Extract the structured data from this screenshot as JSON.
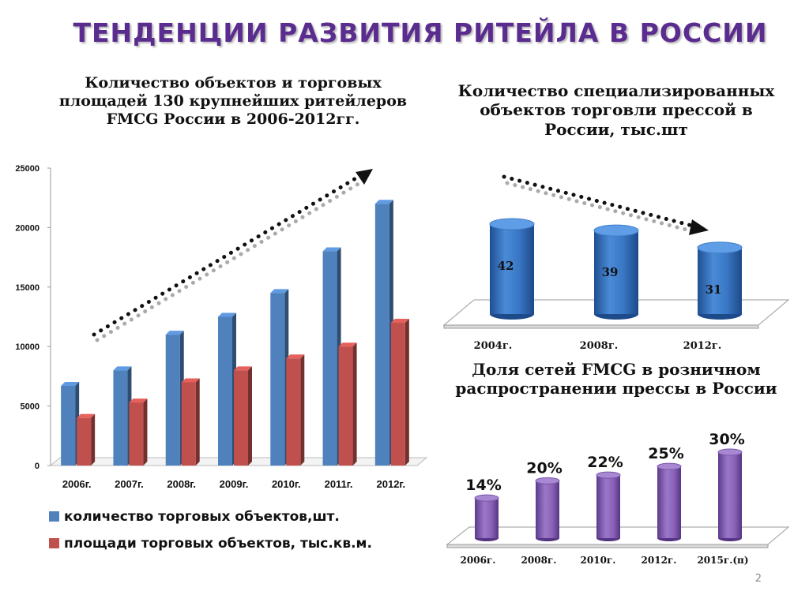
{
  "page": {
    "title": "ТЕНДЕНЦИИ РАЗВИТИЯ РИТЕЙЛА В РОССИИ",
    "page_number": "2"
  },
  "colors": {
    "title": "#5b2c8f",
    "blue_series": "#4f81bd",
    "red_series": "#c0504d",
    "cylinder_blue": "#3a78c6",
    "purple_bars": "#8a63b8"
  },
  "chart_data": [
    {
      "type": "bar",
      "title": "Количество  объектов и торговых площадей 130 крупнейших ритейлеров FMCG России в 2006-2012гг.",
      "categories": [
        "2006г.",
        "2007г.",
        "2008г.",
        "2009г.",
        "2010г.",
        "2011г.",
        "2012г."
      ],
      "series": [
        {
          "name": "количество торговых объектов,шт.",
          "values": [
            6700,
            8000,
            11000,
            12500,
            14500,
            18000,
            22000
          ]
        },
        {
          "name": "площади торговых объектов, тыс.кв.м.",
          "values": [
            4000,
            5300,
            7000,
            8000,
            9000,
            10000,
            12000
          ]
        }
      ],
      "ylim": [
        0,
        25000
      ],
      "yticks": [
        0,
        5000,
        10000,
        15000,
        20000,
        25000
      ],
      "xlabel": "",
      "ylabel": "",
      "legend": "bottom",
      "trend": "up"
    },
    {
      "type": "bar",
      "title": "Количество специализированных объектов торговли прессой в России, тыс.шт",
      "categories": [
        "2004г.",
        "2008г.",
        "2012г."
      ],
      "values": [
        42,
        39,
        31
      ],
      "labels": [
        "42",
        "39",
        "31"
      ],
      "trend": "down"
    },
    {
      "type": "bar",
      "title": "Доля сетей FMCG в розничном распространении прессы в России",
      "categories": [
        "2006г.",
        "2008г.",
        "2010г.",
        "2012г.",
        "2015г.(п)"
      ],
      "values": [
        14,
        20,
        22,
        25,
        30
      ],
      "labels": [
        "14%",
        "20%",
        "22%",
        "25%",
        "30%"
      ]
    }
  ]
}
